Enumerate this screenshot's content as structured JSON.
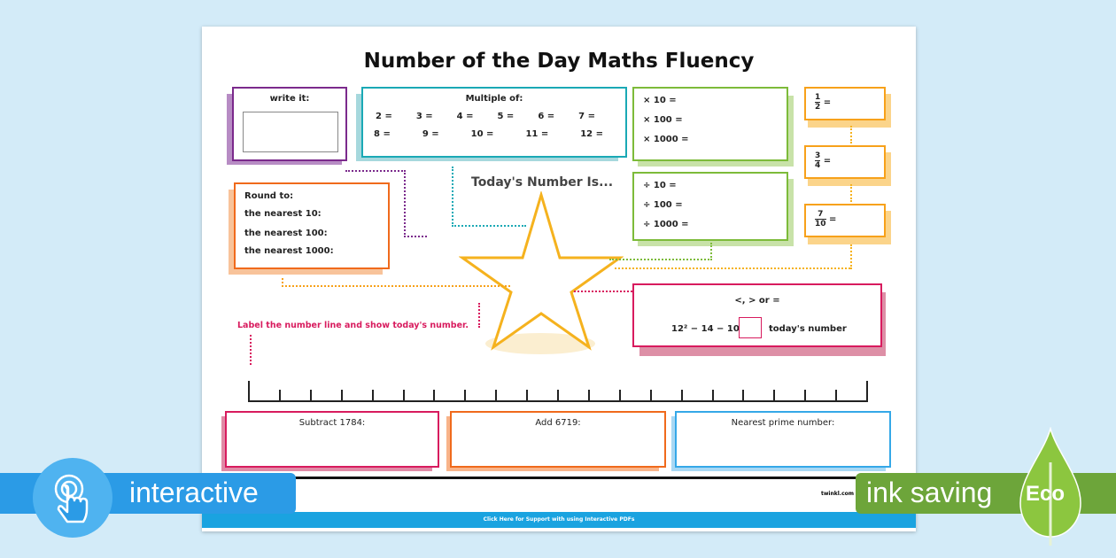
{
  "title": "Number of the Day Maths Fluency",
  "write_it": {
    "label": "write it:"
  },
  "multiple_of": {
    "label": "Multiple of:",
    "row1": [
      "2 =",
      "3 =",
      "4 =",
      "5 =",
      "6 =",
      "7 ="
    ],
    "row2": [
      "8 =",
      "9 =",
      "10 =",
      "11 =",
      "12 ="
    ]
  },
  "todays_number": "Today's Number Is...",
  "round_to": {
    "label": "Round to:",
    "items": [
      "the nearest 10:",
      "the nearest 100:",
      "the nearest 1000:"
    ]
  },
  "multiply": [
    "× 10 =",
    "× 100 =",
    "× 1000 ="
  ],
  "divide": [
    "÷ 10 =",
    "÷ 100 =",
    "÷ 1000 ="
  ],
  "fractions": [
    {
      "num": "1",
      "den": "2",
      "eq": "="
    },
    {
      "num": "3",
      "den": "4",
      "eq": "="
    },
    {
      "num": "7",
      "den": "10",
      "eq": "="
    }
  ],
  "compare": {
    "label": "<, > or =",
    "expression": "12² − 14 − 10",
    "right": "today's number"
  },
  "number_line_label": "Label the number line and show today's number.",
  "bottom": [
    "Subtract 1784:",
    "Add 6719:",
    "Nearest prime number:"
  ],
  "footer": {
    "website": "twinkl.com",
    "support_link": "Click Here for Support with using Interactive PDFs"
  },
  "badges": {
    "interactive": "interactive",
    "ink_saving": "ink saving",
    "eco": "Eco"
  },
  "colors": {
    "purple": "#7b2a8c",
    "teal": "#1aa9b5",
    "green": "#7dbb3a",
    "orange": "#f7a11a",
    "red": "#f06a1c",
    "pink": "#d81b5e",
    "blue": "#35a8e8",
    "star": "#f5b21e"
  }
}
